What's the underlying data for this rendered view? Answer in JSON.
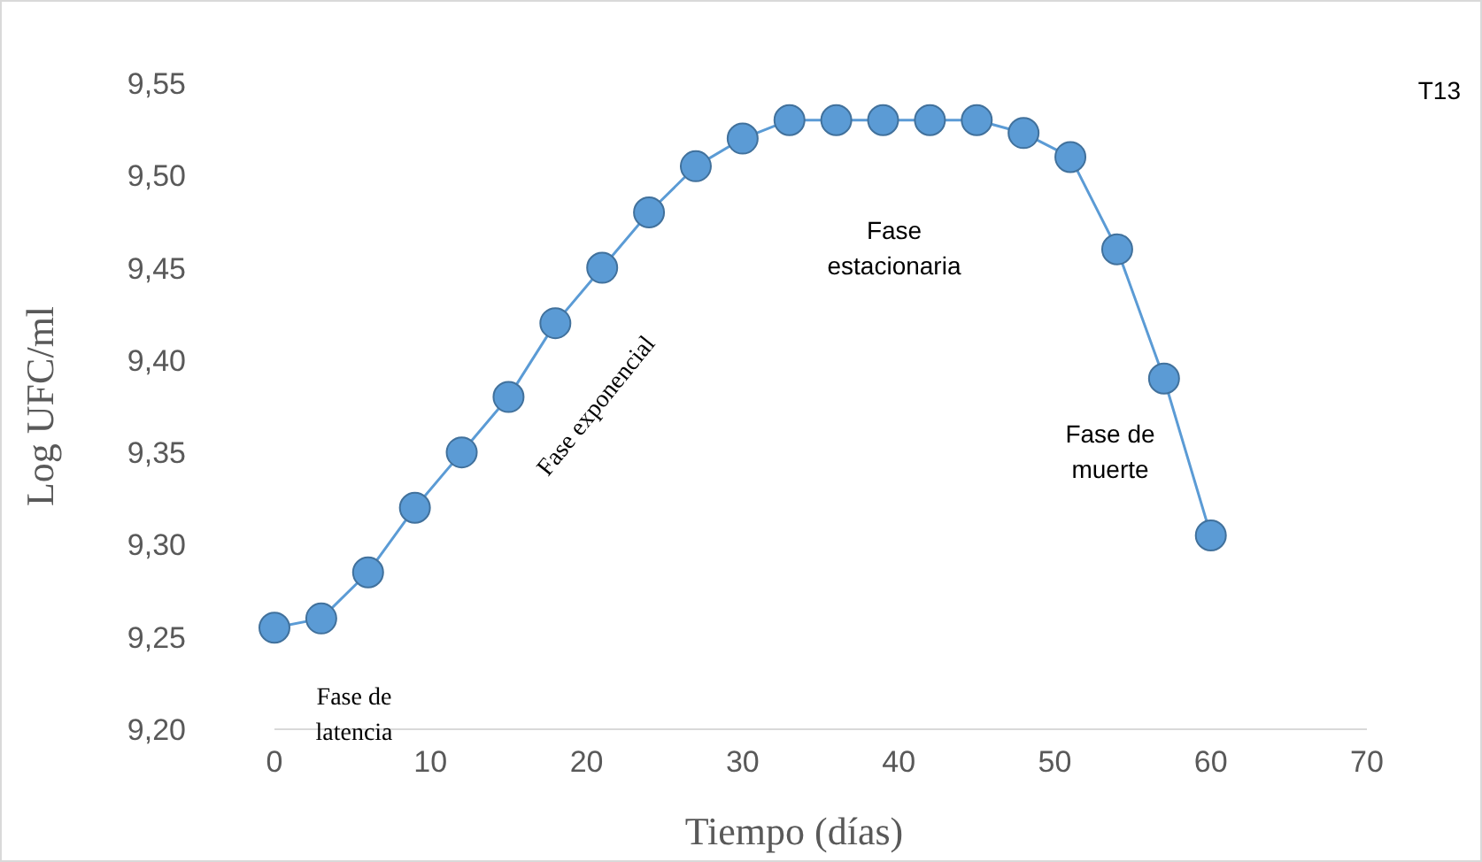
{
  "chart_data": {
    "type": "line",
    "xlabel": "Tiempo (días)",
    "ylabel": "Log UFC/ml",
    "x": [
      0,
      3,
      6,
      9,
      12,
      15,
      18,
      21,
      24,
      27,
      30,
      33,
      36,
      39,
      42,
      45,
      48,
      51,
      54,
      57,
      60
    ],
    "series": [
      {
        "color": "#5b9bd5",
        "values": [
          9.255,
          9.26,
          9.285,
          9.32,
          9.35,
          9.38,
          9.42,
          9.45,
          9.48,
          9.505,
          9.52,
          9.53,
          9.53,
          9.53,
          9.53,
          9.53,
          9.523,
          9.51,
          9.46,
          9.39,
          9.305
        ]
      }
    ],
    "xlim": [
      0,
      70
    ],
    "xticks": [
      0,
      10,
      20,
      30,
      40,
      50,
      60,
      70
    ],
    "ylim": [
      9.2,
      9.55
    ],
    "yticks": [
      {
        "value": 9.2,
        "label": "9,20"
      },
      {
        "value": 9.25,
        "label": "9,25"
      },
      {
        "value": 9.3,
        "label": "9,30"
      },
      {
        "value": 9.35,
        "label": "9,35"
      },
      {
        "value": 9.4,
        "label": "9,40"
      },
      {
        "value": 9.45,
        "label": "9,45"
      },
      {
        "value": 9.5,
        "label": "9,50"
      },
      {
        "value": 9.55,
        "label": "9,55"
      }
    ],
    "marker": "circle",
    "grid": false,
    "annotations": [
      "T13",
      "Fase de latencia",
      "Fase exponencial",
      "Fase estacionaria",
      "Fase de muerte"
    ]
  }
}
